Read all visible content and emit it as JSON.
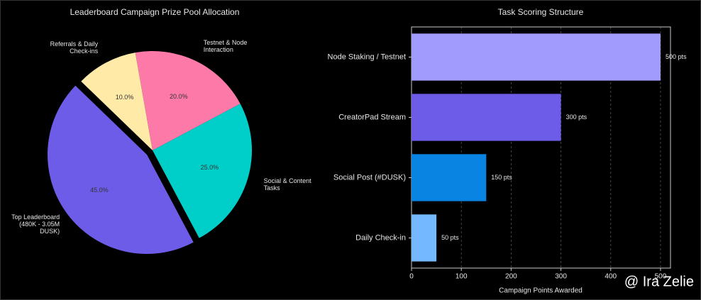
{
  "chart_data": [
    {
      "type": "pie",
      "title": "Leaderboard Campaign Prize Pool Allocation",
      "categories": [
        "Referrals & Daily\nCheck-ins",
        "Testnet & Node\nInteraction",
        "Social & Content\nTasks",
        "Top Leaderboard\n(480K - 3.05M DUSK)"
      ],
      "values": [
        10,
        20,
        25,
        45
      ],
      "value_labels": [
        "10.0%",
        "20.0%",
        "25.0%",
        "45.0%"
      ],
      "colors": [
        "#ffeaa7",
        "#fd79a8",
        "#00cec9",
        "#6c5ce7"
      ]
    },
    {
      "type": "barh",
      "title": "Task Scoring Structure",
      "categories": [
        "Node Staking / Testnet",
        "CreatorPad Stream",
        "Social Post (#DUSK)",
        "Daily Check-in"
      ],
      "values": [
        500,
        300,
        150,
        50
      ],
      "value_labels": [
        "500 pts",
        "300 pts",
        "150 pts",
        "50 pts"
      ],
      "colors": [
        "#a29bfe",
        "#6c5ce7",
        "#0984e3",
        "#74b9ff"
      ],
      "xlim": [
        0,
        520
      ],
      "xticks": [
        0,
        100,
        200,
        300,
        400,
        500
      ],
      "xlabel": "Campaign Points Awarded",
      "grid": true
    }
  ],
  "watermark": "@ Ira Zelie"
}
